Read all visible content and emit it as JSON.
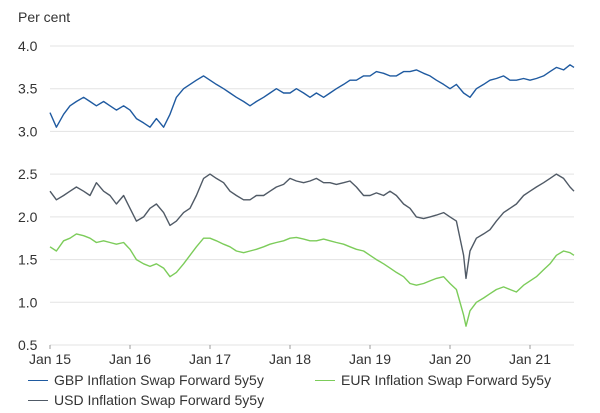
{
  "chart_data": {
    "type": "line",
    "unit_label": "Per cent",
    "y_ticks": [
      "4.0",
      "3.5",
      "3.0",
      "2.5",
      "2.0",
      "1.5",
      "1.0",
      "0.5"
    ],
    "ylim": [
      0.5,
      4.0
    ],
    "x_ticks": [
      "Jan 15",
      "Jan 16",
      "Jan 17",
      "Jan 18",
      "Jan 19",
      "Jan 20",
      "Jan 21"
    ],
    "xlim": [
      2015.0,
      2021.55
    ],
    "grid": "horizontal",
    "legend_position": "bottom",
    "series": [
      {
        "name": "GBP Inflation Swap Forward 5y5y",
        "color": "#1f5aa0",
        "points": [
          [
            2015.0,
            3.22
          ],
          [
            2015.08,
            3.05
          ],
          [
            2015.17,
            3.2
          ],
          [
            2015.25,
            3.3
          ],
          [
            2015.33,
            3.35
          ],
          [
            2015.42,
            3.4
          ],
          [
            2015.5,
            3.35
          ],
          [
            2015.58,
            3.3
          ],
          [
            2015.67,
            3.35
          ],
          [
            2015.75,
            3.3
          ],
          [
            2015.83,
            3.25
          ],
          [
            2015.92,
            3.3
          ],
          [
            2016.0,
            3.25
          ],
          [
            2016.08,
            3.15
          ],
          [
            2016.17,
            3.1
          ],
          [
            2016.25,
            3.05
          ],
          [
            2016.33,
            3.15
          ],
          [
            2016.42,
            3.05
          ],
          [
            2016.5,
            3.2
          ],
          [
            2016.58,
            3.4
          ],
          [
            2016.67,
            3.5
          ],
          [
            2016.75,
            3.55
          ],
          [
            2016.83,
            3.6
          ],
          [
            2016.92,
            3.65
          ],
          [
            2017.0,
            3.6
          ],
          [
            2017.08,
            3.55
          ],
          [
            2017.17,
            3.5
          ],
          [
            2017.25,
            3.45
          ],
          [
            2017.33,
            3.4
          ],
          [
            2017.42,
            3.35
          ],
          [
            2017.5,
            3.3
          ],
          [
            2017.58,
            3.35
          ],
          [
            2017.67,
            3.4
          ],
          [
            2017.75,
            3.45
          ],
          [
            2017.83,
            3.5
          ],
          [
            2017.92,
            3.45
          ],
          [
            2018.0,
            3.45
          ],
          [
            2018.08,
            3.5
          ],
          [
            2018.17,
            3.45
          ],
          [
            2018.25,
            3.4
          ],
          [
            2018.33,
            3.45
          ],
          [
            2018.42,
            3.4
          ],
          [
            2018.5,
            3.45
          ],
          [
            2018.58,
            3.5
          ],
          [
            2018.67,
            3.55
          ],
          [
            2018.75,
            3.6
          ],
          [
            2018.83,
            3.6
          ],
          [
            2018.92,
            3.65
          ],
          [
            2019.0,
            3.65
          ],
          [
            2019.08,
            3.7
          ],
          [
            2019.17,
            3.68
          ],
          [
            2019.25,
            3.65
          ],
          [
            2019.33,
            3.65
          ],
          [
            2019.42,
            3.7
          ],
          [
            2019.5,
            3.7
          ],
          [
            2019.58,
            3.72
          ],
          [
            2019.67,
            3.68
          ],
          [
            2019.75,
            3.65
          ],
          [
            2019.83,
            3.6
          ],
          [
            2019.92,
            3.55
          ],
          [
            2020.0,
            3.5
          ],
          [
            2020.08,
            3.55
          ],
          [
            2020.17,
            3.45
          ],
          [
            2020.25,
            3.4
          ],
          [
            2020.33,
            3.5
          ],
          [
            2020.42,
            3.55
          ],
          [
            2020.5,
            3.6
          ],
          [
            2020.58,
            3.62
          ],
          [
            2020.67,
            3.65
          ],
          [
            2020.75,
            3.6
          ],
          [
            2020.83,
            3.6
          ],
          [
            2020.92,
            3.62
          ],
          [
            2021.0,
            3.6
          ],
          [
            2021.08,
            3.62
          ],
          [
            2021.17,
            3.65
          ],
          [
            2021.25,
            3.7
          ],
          [
            2021.33,
            3.75
          ],
          [
            2021.42,
            3.72
          ],
          [
            2021.5,
            3.78
          ],
          [
            2021.55,
            3.75
          ]
        ]
      },
      {
        "name": "EUR Inflation Swap Forward 5y5y",
        "color": "#7ccc5a",
        "points": [
          [
            2015.0,
            1.65
          ],
          [
            2015.08,
            1.6
          ],
          [
            2015.17,
            1.72
          ],
          [
            2015.25,
            1.75
          ],
          [
            2015.33,
            1.8
          ],
          [
            2015.42,
            1.78
          ],
          [
            2015.5,
            1.75
          ],
          [
            2015.58,
            1.7
          ],
          [
            2015.67,
            1.72
          ],
          [
            2015.75,
            1.7
          ],
          [
            2015.83,
            1.68
          ],
          [
            2015.92,
            1.7
          ],
          [
            2016.0,
            1.62
          ],
          [
            2016.08,
            1.5
          ],
          [
            2016.17,
            1.45
          ],
          [
            2016.25,
            1.42
          ],
          [
            2016.33,
            1.45
          ],
          [
            2016.42,
            1.4
          ],
          [
            2016.5,
            1.3
          ],
          [
            2016.58,
            1.35
          ],
          [
            2016.67,
            1.45
          ],
          [
            2016.75,
            1.55
          ],
          [
            2016.83,
            1.65
          ],
          [
            2016.92,
            1.75
          ],
          [
            2017.0,
            1.75
          ],
          [
            2017.08,
            1.72
          ],
          [
            2017.17,
            1.68
          ],
          [
            2017.25,
            1.65
          ],
          [
            2017.33,
            1.6
          ],
          [
            2017.42,
            1.58
          ],
          [
            2017.5,
            1.6
          ],
          [
            2017.58,
            1.62
          ],
          [
            2017.67,
            1.65
          ],
          [
            2017.75,
            1.68
          ],
          [
            2017.83,
            1.7
          ],
          [
            2017.92,
            1.72
          ],
          [
            2018.0,
            1.75
          ],
          [
            2018.08,
            1.76
          ],
          [
            2018.17,
            1.74
          ],
          [
            2018.25,
            1.72
          ],
          [
            2018.33,
            1.72
          ],
          [
            2018.42,
            1.74
          ],
          [
            2018.5,
            1.72
          ],
          [
            2018.58,
            1.7
          ],
          [
            2018.67,
            1.68
          ],
          [
            2018.75,
            1.65
          ],
          [
            2018.83,
            1.62
          ],
          [
            2018.92,
            1.6
          ],
          [
            2019.0,
            1.55
          ],
          [
            2019.08,
            1.5
          ],
          [
            2019.17,
            1.45
          ],
          [
            2019.25,
            1.4
          ],
          [
            2019.33,
            1.35
          ],
          [
            2019.42,
            1.3
          ],
          [
            2019.5,
            1.22
          ],
          [
            2019.58,
            1.2
          ],
          [
            2019.67,
            1.22
          ],
          [
            2019.75,
            1.25
          ],
          [
            2019.83,
            1.28
          ],
          [
            2019.92,
            1.3
          ],
          [
            2020.0,
            1.22
          ],
          [
            2020.08,
            1.15
          ],
          [
            2020.17,
            0.85
          ],
          [
            2020.2,
            0.72
          ],
          [
            2020.25,
            0.9
          ],
          [
            2020.33,
            1.0
          ],
          [
            2020.42,
            1.05
          ],
          [
            2020.5,
            1.1
          ],
          [
            2020.58,
            1.15
          ],
          [
            2020.67,
            1.18
          ],
          [
            2020.75,
            1.15
          ],
          [
            2020.83,
            1.12
          ],
          [
            2020.92,
            1.2
          ],
          [
            2021.0,
            1.25
          ],
          [
            2021.08,
            1.3
          ],
          [
            2021.17,
            1.38
          ],
          [
            2021.25,
            1.45
          ],
          [
            2021.33,
            1.55
          ],
          [
            2021.42,
            1.6
          ],
          [
            2021.5,
            1.58
          ],
          [
            2021.55,
            1.55
          ]
        ]
      },
      {
        "name": "USD Inflation Swap Forward 5y5y",
        "color": "#505a66",
        "points": [
          [
            2015.0,
            2.3
          ],
          [
            2015.08,
            2.2
          ],
          [
            2015.17,
            2.25
          ],
          [
            2015.25,
            2.3
          ],
          [
            2015.33,
            2.35
          ],
          [
            2015.42,
            2.3
          ],
          [
            2015.5,
            2.25
          ],
          [
            2015.58,
            2.4
          ],
          [
            2015.67,
            2.3
          ],
          [
            2015.75,
            2.25
          ],
          [
            2015.83,
            2.15
          ],
          [
            2015.92,
            2.25
          ],
          [
            2016.0,
            2.1
          ],
          [
            2016.08,
            1.95
          ],
          [
            2016.17,
            2.0
          ],
          [
            2016.25,
            2.1
          ],
          [
            2016.33,
            2.15
          ],
          [
            2016.42,
            2.05
          ],
          [
            2016.5,
            1.9
          ],
          [
            2016.58,
            1.95
          ],
          [
            2016.67,
            2.05
          ],
          [
            2016.75,
            2.1
          ],
          [
            2016.83,
            2.25
          ],
          [
            2016.92,
            2.45
          ],
          [
            2017.0,
            2.5
          ],
          [
            2017.08,
            2.45
          ],
          [
            2017.17,
            2.4
          ],
          [
            2017.25,
            2.3
          ],
          [
            2017.33,
            2.25
          ],
          [
            2017.42,
            2.2
          ],
          [
            2017.5,
            2.2
          ],
          [
            2017.58,
            2.25
          ],
          [
            2017.67,
            2.25
          ],
          [
            2017.75,
            2.3
          ],
          [
            2017.83,
            2.35
          ],
          [
            2017.92,
            2.38
          ],
          [
            2018.0,
            2.45
          ],
          [
            2018.08,
            2.42
          ],
          [
            2018.17,
            2.4
          ],
          [
            2018.25,
            2.42
          ],
          [
            2018.33,
            2.45
          ],
          [
            2018.42,
            2.4
          ],
          [
            2018.5,
            2.4
          ],
          [
            2018.58,
            2.38
          ],
          [
            2018.67,
            2.4
          ],
          [
            2018.75,
            2.42
          ],
          [
            2018.83,
            2.35
          ],
          [
            2018.92,
            2.25
          ],
          [
            2019.0,
            2.25
          ],
          [
            2019.08,
            2.28
          ],
          [
            2019.17,
            2.25
          ],
          [
            2019.25,
            2.3
          ],
          [
            2019.33,
            2.25
          ],
          [
            2019.42,
            2.15
          ],
          [
            2019.5,
            2.1
          ],
          [
            2019.58,
            2.0
          ],
          [
            2019.67,
            1.98
          ],
          [
            2019.75,
            2.0
          ],
          [
            2019.83,
            2.02
          ],
          [
            2019.92,
            2.05
          ],
          [
            2020.0,
            2.0
          ],
          [
            2020.08,
            1.95
          ],
          [
            2020.17,
            1.55
          ],
          [
            2020.2,
            1.28
          ],
          [
            2020.25,
            1.6
          ],
          [
            2020.33,
            1.75
          ],
          [
            2020.42,
            1.8
          ],
          [
            2020.5,
            1.85
          ],
          [
            2020.58,
            1.95
          ],
          [
            2020.67,
            2.05
          ],
          [
            2020.75,
            2.1
          ],
          [
            2020.83,
            2.15
          ],
          [
            2020.92,
            2.25
          ],
          [
            2021.0,
            2.3
          ],
          [
            2021.08,
            2.35
          ],
          [
            2021.17,
            2.4
          ],
          [
            2021.25,
            2.45
          ],
          [
            2021.33,
            2.5
          ],
          [
            2021.42,
            2.45
          ],
          [
            2021.5,
            2.35
          ],
          [
            2021.55,
            2.3
          ]
        ]
      }
    ]
  }
}
